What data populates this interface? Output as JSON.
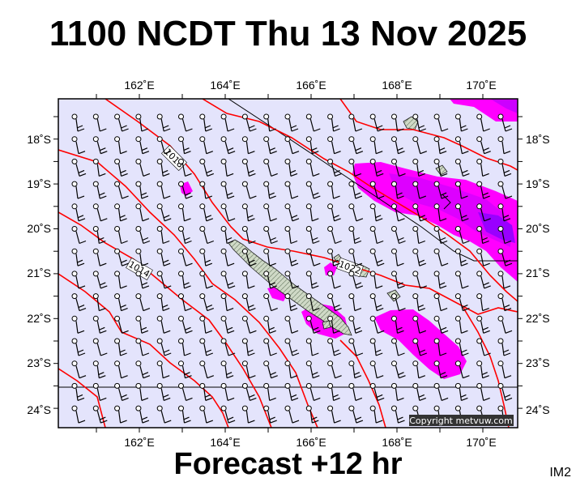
{
  "header": {
    "title": "1100 NCDT Thu 13 Nov 2025"
  },
  "footer": {
    "forecast": "Forecast +12 hr",
    "chart_id": "IM2"
  },
  "map": {
    "copyright": "Copyright metvuw.com",
    "lon_ticks": [
      "162˚E",
      "164˚E",
      "166˚E",
      "168˚E",
      "170˚E"
    ],
    "lat_ticks": [
      "18˚S",
      "19˚S",
      "20˚S",
      "21˚S",
      "22˚S",
      "23˚S",
      "24˚S"
    ],
    "isobar_labels": [
      "1018",
      "1014",
      "1022"
    ],
    "colors": {
      "background": "#e4e4fc",
      "isobar": "#ff0000",
      "precip_light": "#ff00ff",
      "precip_heavy": "#cc00ff",
      "precip_max": "#8800ff",
      "land": "#c8d4c0"
    }
  }
}
